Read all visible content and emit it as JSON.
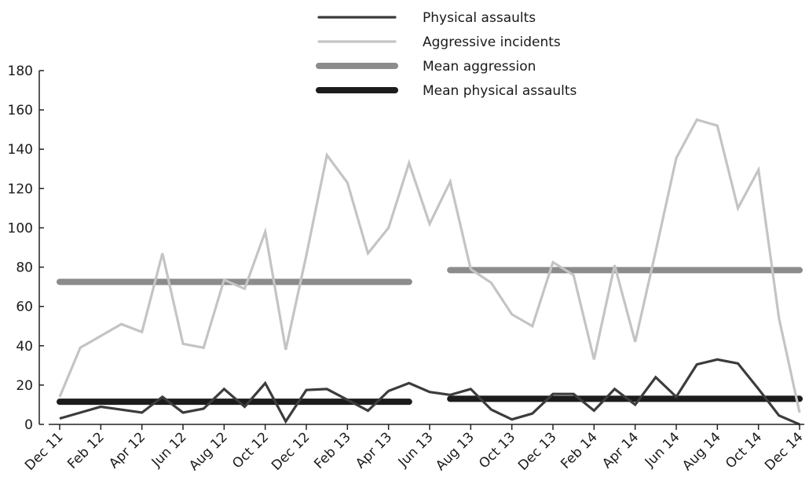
{
  "chart_data": {
    "type": "line",
    "title": "",
    "xlabel": "",
    "ylabel": "",
    "ylim": [
      0,
      180
    ],
    "yticks": [
      0,
      20,
      40,
      60,
      80,
      100,
      120,
      140,
      160,
      180
    ],
    "grid": false,
    "legend_position": "top-center",
    "x": [
      "Dec 11",
      "Jan 12",
      "Feb 12",
      "Mar 12",
      "Apr 12",
      "May 12",
      "Jun 12",
      "Jul 12",
      "Aug 12",
      "Sep 12",
      "Oct 12",
      "Nov 12",
      "Dec 12",
      "Jan 13",
      "Feb 13",
      "Mar 13",
      "Apr 13",
      "May 13",
      "Jun 13",
      "Jul 13",
      "Aug 13",
      "Sep 13",
      "Oct 13",
      "Nov 13",
      "Dec 13",
      "Jan 14",
      "Feb 14",
      "Mar 14",
      "Apr 14",
      "May 14",
      "Jun 14",
      "Jul 14",
      "Aug 14",
      "Sep 14",
      "Oct 14",
      "Nov 14",
      "Dec 14"
    ],
    "xtick_labels": [
      "Dec 11",
      "Feb 12",
      "Apr 12",
      "Jun 12",
      "Aug 12",
      "Oct 12",
      "Dec 12",
      "Feb 13",
      "Apr 13",
      "Jun 13",
      "Aug 13",
      "Oct 13",
      "Dec 13",
      "Feb 14",
      "Apr 14",
      "Jun 14",
      "Aug 14",
      "Oct 14",
      "Dec 14"
    ],
    "series": [
      {
        "name": "Physical assaults",
        "color": "#3c3c3c",
        "values": [
          3,
          6,
          9,
          7.5,
          6,
          14,
          6,
          8,
          18,
          9,
          21,
          1.5,
          17.5,
          18,
          12.5,
          7,
          17,
          21,
          16.5,
          15,
          18,
          7.5,
          2.5,
          5.5,
          15.5,
          15.5,
          7,
          18,
          10,
          24,
          14,
          30.5,
          33,
          31,
          18,
          4.5,
          0
        ]
      },
      {
        "name": "Aggressive incidents",
        "color": "#c4c4c4",
        "values": [
          14,
          39,
          45,
          51,
          47,
          87,
          41,
          39,
          73.5,
          69,
          98,
          38,
          86,
          137,
          123,
          87,
          100,
          133,
          102,
          123.5,
          79,
          72,
          56,
          50,
          82.5,
          76,
          33,
          81,
          42,
          88,
          135.5,
          155,
          152,
          110,
          129.5,
          54,
          6
        ]
      }
    ],
    "mean_lines": [
      {
        "name": "Mean aggression",
        "color": "#8c8c8c",
        "segments": [
          {
            "from": "Dec 11",
            "to": "May 13",
            "value": 72.5
          },
          {
            "from": "Jul 13",
            "to": "Dec 14",
            "value": 78.5
          }
        ]
      },
      {
        "name": "Mean physical assaults",
        "color": "#1c1c1c",
        "segments": [
          {
            "from": "Dec 11",
            "to": "May 13",
            "value": 11.5
          },
          {
            "from": "Jul 13",
            "to": "Dec 14",
            "value": 13
          }
        ]
      }
    ],
    "legend": [
      {
        "label": "Physical assaults",
        "color": "#3c3c3c",
        "style": "thin"
      },
      {
        "label": "Aggressive incidents",
        "color": "#c4c4c4",
        "style": "thin"
      },
      {
        "label": "Mean aggression",
        "color": "#8c8c8c",
        "style": "thick"
      },
      {
        "label": "Mean physical assaults",
        "color": "#1c1c1c",
        "style": "thick"
      }
    ]
  }
}
